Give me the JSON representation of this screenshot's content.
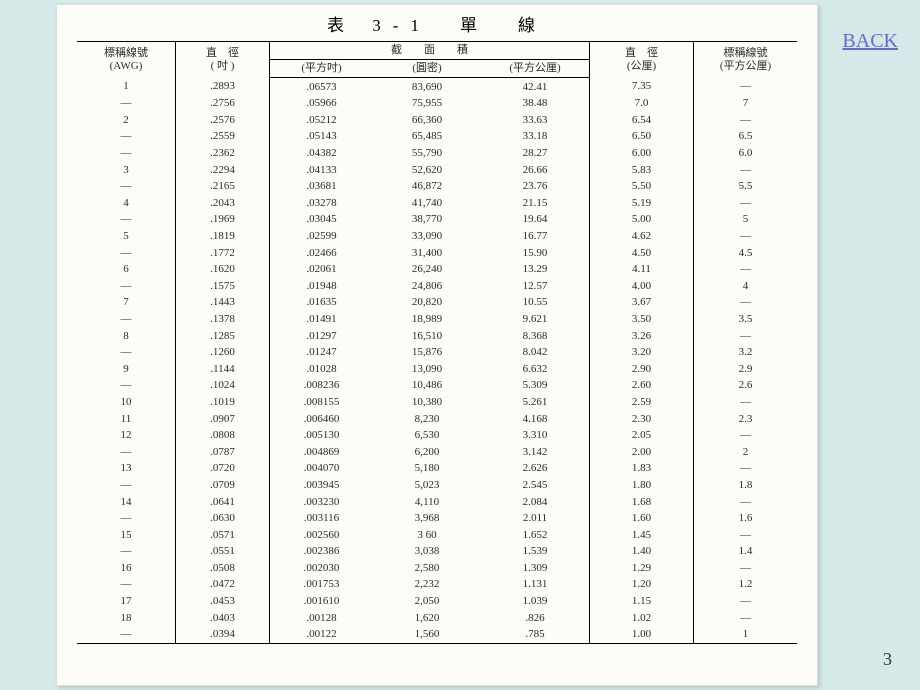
{
  "title": "表 3-1　單　線",
  "back_label": "BACK",
  "slide_number": "3",
  "headers": {
    "awg": "標稱線號\n(AWG)",
    "dia_in": "直　徑\n( 吋 )",
    "area_group": "截　　面　　積",
    "area_sqin": "(平方吋)",
    "area_cmil": "(圓密)",
    "area_sqmm": "(平方公厘)",
    "dia_mm": "直　徑\n(公厘)",
    "std_mm": "標稱線號\n(平方公厘)"
  },
  "rows": [
    [
      "1",
      ".2893",
      ".06573",
      "83,690",
      "42.41",
      "7.35",
      "—"
    ],
    [
      "—",
      ".2756",
      ".05966",
      "75,955",
      "38.48",
      "7.0",
      "7"
    ],
    [
      "2",
      ".2576",
      ".05212",
      "66,360",
      "33.63",
      "6.54",
      "—"
    ],
    [
      "—",
      ".2559",
      ".05143",
      "65,485",
      "33.18",
      "6.50",
      "6.5"
    ],
    [
      "—",
      ".2362",
      ".04382",
      "55,790",
      "28.27",
      "6.00",
      "6.0"
    ],
    [
      "3",
      ".2294",
      ".04133",
      "52,620",
      "26.66",
      "5.83",
      "—"
    ],
    [
      "—",
      ".2165",
      ".03681",
      "46,872",
      "23.76",
      "5.50",
      "5.5"
    ],
    [
      "4",
      ".2043",
      ".03278",
      "41,740",
      "21.15",
      "5.19",
      "—"
    ],
    [
      "—",
      ".1969",
      ".03045",
      "38,770",
      "19.64",
      "5.00",
      "5"
    ],
    [
      "5",
      ".1819",
      ".02599",
      "33,090",
      "16.77",
      "4.62",
      "—"
    ],
    [
      "—",
      ".1772",
      ".02466",
      "31,400",
      "15.90",
      "4.50",
      "4.5"
    ],
    [
      "6",
      ".1620",
      ".02061",
      "26,240",
      "13.29",
      "4.11",
      "—"
    ],
    [
      "—",
      ".1575",
      ".01948",
      "24,806",
      "12.57",
      "4.00",
      "4"
    ],
    [
      "7",
      ".1443",
      ".01635",
      "20,820",
      "10.55",
      "3.67",
      "—"
    ],
    [
      "—",
      ".1378",
      ".01491",
      "18,989",
      "9.621",
      "3.50",
      "3.5"
    ],
    [
      "8",
      ".1285",
      ".01297",
      "16,510",
      "8.368",
      "3.26",
      "—"
    ],
    [
      "—",
      ".1260",
      ".01247",
      "15,876",
      "8.042",
      "3.20",
      "3.2"
    ],
    [
      "9",
      ".1144",
      ".01028",
      "13,090",
      "6.632",
      "2.90",
      "2.9"
    ],
    [
      "—",
      ".1024",
      ".008236",
      "10,486",
      "5.309",
      "2.60",
      "2.6"
    ],
    [
      "10",
      ".1019",
      ".008155",
      "10,380",
      "5.261",
      "2.59",
      "—"
    ],
    [
      "11",
      ".0907",
      ".006460",
      "8,230",
      "4.168",
      "2.30",
      "2.3"
    ],
    [
      "12",
      ".0808",
      ".005130",
      "6,530",
      "3.310",
      "2.05",
      "—"
    ],
    [
      "—",
      ".0787",
      ".004869",
      "6,200",
      "3.142",
      "2.00",
      "2"
    ],
    [
      "13",
      ".0720",
      ".004070",
      "5,180",
      "2.626",
      "1.83",
      "—"
    ],
    [
      "—",
      ".0709",
      ".003945",
      "5,023",
      "2.545",
      "1.80",
      "1.8"
    ],
    [
      "14",
      ".0641",
      ".003230",
      "4,110",
      "2.084",
      "1.68",
      "—"
    ],
    [
      "—",
      ".0630",
      ".003116",
      "3,968",
      "2.011",
      "1.60",
      "1.6"
    ],
    [
      "15",
      ".0571",
      ".002560",
      "3 60",
      "1.652",
      "1.45",
      "—"
    ],
    [
      "—",
      ".0551",
      ".002386",
      "3,038",
      "1.539",
      "1.40",
      "1.4"
    ],
    [
      "16",
      ".0508",
      ".002030",
      "2,580",
      "1.309",
      "1.29",
      "—"
    ],
    [
      "—",
      ".0472",
      ".001753",
      "2,232",
      "1.131",
      "1.20",
      "1.2"
    ],
    [
      "17",
      ".0453",
      ".001610",
      "2,050",
      "1.039",
      "1.15",
      "—"
    ],
    [
      "18",
      ".0403",
      ".00128",
      "1,620",
      ".826",
      "1.02",
      "—"
    ],
    [
      "—",
      ".0394",
      ".00122",
      "1,560",
      ".785",
      "1.00",
      "1"
    ]
  ]
}
